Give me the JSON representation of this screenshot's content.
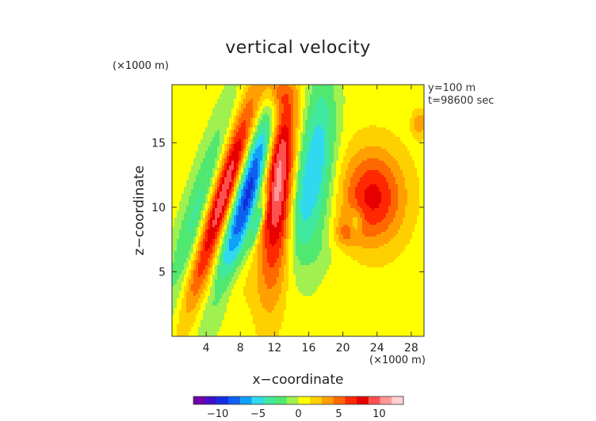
{
  "chart_data": {
    "type": "heatmap",
    "title": "vertical velocity",
    "xlabel": "x−coordinate",
    "ylabel": "z−coordinate",
    "x_unit": "(×1000 m)",
    "y_unit": "(×1000 m)",
    "annotations": [
      "y=100 m",
      "t=98600 sec"
    ],
    "xlim": [
      0,
      29.5
    ],
    "ylim": [
      0,
      19.5
    ],
    "x_ticks": [
      4,
      8,
      12,
      16,
      20,
      24,
      28
    ],
    "x_tick_labels": [
      "4",
      "8",
      "12",
      "16",
      "20",
      "24",
      "28"
    ],
    "y_ticks": [
      5,
      10,
      15
    ],
    "y_tick_labels": [
      "5",
      "10",
      "15"
    ],
    "colorbar": {
      "range": [
        -13,
        13
      ],
      "ticks": [
        -10,
        -5,
        0,
        5,
        10
      ],
      "tick_labels": [
        "−10",
        "−5",
        "0",
        "5",
        "10"
      ],
      "colors": [
        "#7000a8",
        "#4010c8",
        "#1030e0",
        "#1060f0",
        "#10a0f8",
        "#30d8f0",
        "#40e8a0",
        "#50e870",
        "#a0f050",
        "#ffff00",
        "#ffd000",
        "#ffa000",
        "#ff6800",
        "#ff2800",
        "#e80000",
        "#ff5050",
        "#ff9898",
        "#ffd0d0"
      ]
    },
    "background_value": 0.7,
    "features": [
      {
        "x": 3.2,
        "z": 9.8,
        "sx": 1.3,
        "sy": 6.0,
        "tilt": 0.45,
        "w": -4.5
      },
      {
        "x": 6.0,
        "z": 11.0,
        "sx": 1.1,
        "sy": 5.5,
        "tilt": 0.45,
        "w": 10.5
      },
      {
        "x": 9.2,
        "z": 11.8,
        "sx": 1.2,
        "sy": 5.8,
        "tilt": 0.45,
        "w": -10.5
      },
      {
        "x": 10.2,
        "z": 9.0,
        "sx": 0.35,
        "sy": 1.4,
        "tilt": 0.45,
        "w": -5.0
      },
      {
        "x": 12.5,
        "z": 13.0,
        "sx": 1.3,
        "sy": 6.2,
        "tilt": 0.1,
        "w": 10.5
      },
      {
        "x": 17.0,
        "z": 13.5,
        "sx": 1.5,
        "sy": 5.0,
        "tilt": 0.1,
        "w": -6.0
      },
      {
        "x": 15.0,
        "z": 10.0,
        "sx": 0.9,
        "sy": 3.0,
        "tilt": 0.1,
        "w": -3.0
      },
      {
        "x": 23.5,
        "z": 10.8,
        "sx": 2.6,
        "sy": 2.6,
        "tilt": 0.0,
        "w": 7.0
      },
      {
        "x": 20.5,
        "z": 8.0,
        "sx": 1.2,
        "sy": 0.8,
        "tilt": 0.0,
        "w": 3.0
      },
      {
        "x": 21.5,
        "z": 8.7,
        "sx": 0.6,
        "sy": 0.8,
        "tilt": 0.0,
        "w": -3.5
      },
      {
        "x": 29.0,
        "z": 16.5,
        "sx": 0.6,
        "sy": 0.7,
        "tilt": 0.0,
        "w": 3.5
      },
      {
        "x": 12.5,
        "z": 18.8,
        "sx": 1.0,
        "sy": 0.9,
        "tilt": 0.0,
        "w": 3.0
      },
      {
        "x": 6.0,
        "z": 4.0,
        "sx": 3.5,
        "sy": 1.5,
        "tilt": 0.0,
        "w": 1.0
      },
      {
        "x": 18.0,
        "z": 6.5,
        "sx": 2.5,
        "sy": 1.0,
        "tilt": 0.0,
        "w": -0.5
      }
    ]
  }
}
